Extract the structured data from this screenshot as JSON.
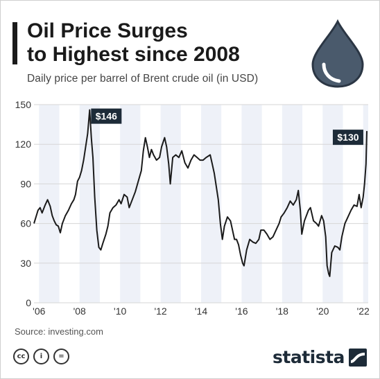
{
  "header": {
    "title_line1": "Oil Price Surges",
    "title_line2": "to Highest since 2008",
    "subtitle": "Daily price per barrel of Brent crude oil (in USD)"
  },
  "icons": {
    "drop": "oil-drop-icon",
    "cc": "creative-commons-icon",
    "by": "attribution-icon",
    "nd": "no-derivatives-icon"
  },
  "footer": {
    "source": "Source: investing.com",
    "brand": "statista",
    "cc_labels": [
      "cc",
      "i",
      "="
    ]
  },
  "colors": {
    "line": "#1a1a1a",
    "band": "#eef1f8",
    "grid": "#d6d6d6",
    "label_bg": "#1d2b38",
    "drop": "#4a5a6c"
  },
  "chart_data": {
    "type": "line",
    "title": "",
    "xlabel": "",
    "ylabel": "",
    "ylim": [
      0,
      150
    ],
    "xlim": [
      2005.75,
      2022.25
    ],
    "yticks": [
      0,
      30,
      60,
      90,
      120,
      150
    ],
    "xticks": [
      {
        "value": 2006,
        "label": "'06"
      },
      {
        "value": 2008,
        "label": "'08"
      },
      {
        "value": 2010,
        "label": "'10"
      },
      {
        "value": 2012,
        "label": "'12"
      },
      {
        "value": 2014,
        "label": "'14"
      },
      {
        "value": 2016,
        "label": "'16"
      },
      {
        "value": 2018,
        "label": "'18"
      },
      {
        "value": 2020,
        "label": "'20"
      },
      {
        "value": 2022,
        "label": "'22"
      }
    ],
    "grid": true,
    "series": [
      {
        "points": [
          [
            2005.75,
            60
          ],
          [
            2005.85,
            65
          ],
          [
            2005.95,
            70
          ],
          [
            2006.05,
            72
          ],
          [
            2006.15,
            68
          ],
          [
            2006.3,
            74
          ],
          [
            2006.42,
            78
          ],
          [
            2006.55,
            73
          ],
          [
            2006.65,
            66
          ],
          [
            2006.75,
            62
          ],
          [
            2006.85,
            59
          ],
          [
            2006.95,
            58
          ],
          [
            2007.05,
            53
          ],
          [
            2007.15,
            60
          ],
          [
            2007.3,
            66
          ],
          [
            2007.45,
            70
          ],
          [
            2007.6,
            75
          ],
          [
            2007.72,
            78
          ],
          [
            2007.8,
            82
          ],
          [
            2007.9,
            92
          ],
          [
            2008.0,
            95
          ],
          [
            2008.1,
            100
          ],
          [
            2008.2,
            108
          ],
          [
            2008.3,
            118
          ],
          [
            2008.4,
            128
          ],
          [
            2008.5,
            146
          ],
          [
            2008.58,
            125
          ],
          [
            2008.66,
            110
          ],
          [
            2008.75,
            80
          ],
          [
            2008.85,
            55
          ],
          [
            2008.95,
            42
          ],
          [
            2009.05,
            40
          ],
          [
            2009.15,
            45
          ],
          [
            2009.3,
            52
          ],
          [
            2009.4,
            58
          ],
          [
            2009.5,
            68
          ],
          [
            2009.65,
            72
          ],
          [
            2009.8,
            74
          ],
          [
            2009.95,
            78
          ],
          [
            2010.05,
            75
          ],
          [
            2010.2,
            82
          ],
          [
            2010.35,
            80
          ],
          [
            2010.45,
            72
          ],
          [
            2010.6,
            78
          ],
          [
            2010.75,
            84
          ],
          [
            2010.9,
            92
          ],
          [
            2011.05,
            100
          ],
          [
            2011.15,
            115
          ],
          [
            2011.25,
            125
          ],
          [
            2011.35,
            118
          ],
          [
            2011.45,
            110
          ],
          [
            2011.55,
            116
          ],
          [
            2011.65,
            112
          ],
          [
            2011.8,
            108
          ],
          [
            2011.95,
            110
          ],
          [
            2012.05,
            118
          ],
          [
            2012.2,
            125
          ],
          [
            2012.3,
            118
          ],
          [
            2012.4,
            105
          ],
          [
            2012.48,
            90
          ],
          [
            2012.6,
            110
          ],
          [
            2012.75,
            112
          ],
          [
            2012.9,
            110
          ],
          [
            2013.05,
            115
          ],
          [
            2013.2,
            106
          ],
          [
            2013.35,
            102
          ],
          [
            2013.5,
            108
          ],
          [
            2013.65,
            112
          ],
          [
            2013.8,
            110
          ],
          [
            2013.95,
            108
          ],
          [
            2014.1,
            108
          ],
          [
            2014.25,
            110
          ],
          [
            2014.45,
            112
          ],
          [
            2014.55,
            105
          ],
          [
            2014.65,
            98
          ],
          [
            2014.75,
            88
          ],
          [
            2014.85,
            78
          ],
          [
            2014.95,
            60
          ],
          [
            2015.05,
            48
          ],
          [
            2015.15,
            58
          ],
          [
            2015.3,
            65
          ],
          [
            2015.45,
            62
          ],
          [
            2015.55,
            55
          ],
          [
            2015.65,
            48
          ],
          [
            2015.75,
            48
          ],
          [
            2015.85,
            44
          ],
          [
            2015.95,
            36
          ],
          [
            2016.05,
            30
          ],
          [
            2016.12,
            28
          ],
          [
            2016.25,
            40
          ],
          [
            2016.4,
            48
          ],
          [
            2016.55,
            46
          ],
          [
            2016.7,
            45
          ],
          [
            2016.85,
            48
          ],
          [
            2016.95,
            55
          ],
          [
            2017.1,
            55
          ],
          [
            2017.25,
            52
          ],
          [
            2017.4,
            48
          ],
          [
            2017.55,
            50
          ],
          [
            2017.7,
            55
          ],
          [
            2017.85,
            60
          ],
          [
            2017.95,
            65
          ],
          [
            2018.1,
            68
          ],
          [
            2018.25,
            72
          ],
          [
            2018.4,
            77
          ],
          [
            2018.55,
            74
          ],
          [
            2018.7,
            78
          ],
          [
            2018.8,
            85
          ],
          [
            2018.9,
            70
          ],
          [
            2018.97,
            52
          ],
          [
            2019.1,
            62
          ],
          [
            2019.3,
            70
          ],
          [
            2019.4,
            72
          ],
          [
            2019.55,
            62
          ],
          [
            2019.7,
            60
          ],
          [
            2019.8,
            58
          ],
          [
            2019.95,
            66
          ],
          [
            2020.05,
            62
          ],
          [
            2020.15,
            50
          ],
          [
            2020.22,
            28
          ],
          [
            2020.3,
            22
          ],
          [
            2020.35,
            20
          ],
          [
            2020.45,
            38
          ],
          [
            2020.6,
            43
          ],
          [
            2020.75,
            42
          ],
          [
            2020.85,
            40
          ],
          [
            2020.95,
            50
          ],
          [
            2021.1,
            60
          ],
          [
            2021.25,
            65
          ],
          [
            2021.4,
            70
          ],
          [
            2021.55,
            74
          ],
          [
            2021.7,
            73
          ],
          [
            2021.8,
            82
          ],
          [
            2021.9,
            72
          ],
          [
            2022.0,
            80
          ],
          [
            2022.07,
            90
          ],
          [
            2022.14,
            105
          ],
          [
            2022.18,
            130
          ]
        ]
      }
    ],
    "annotations": [
      {
        "x": 2008.5,
        "y": 146,
        "text": "$146",
        "placement": "right"
      },
      {
        "x": 2022.18,
        "y": 130,
        "text": "$130",
        "placement": "left"
      }
    ]
  }
}
